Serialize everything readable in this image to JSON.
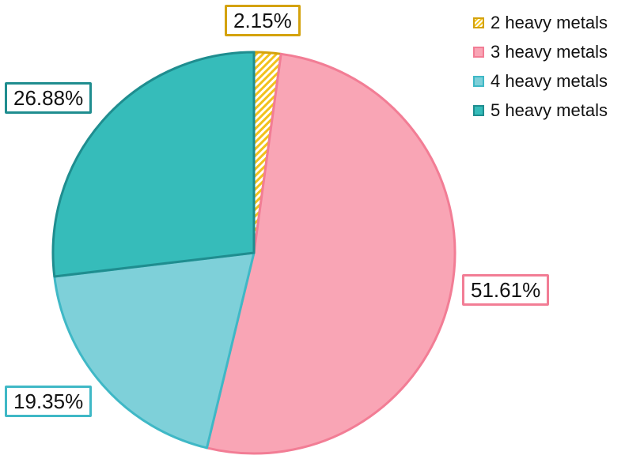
{
  "chart_data": {
    "type": "pie",
    "title": "",
    "series": [
      {
        "name": "2 heavy metals",
        "value": 2.15,
        "label": "2.15%",
        "color": "#f2c21c",
        "border": "#d4a20c",
        "pattern": "hatched"
      },
      {
        "name": "3 heavy metals",
        "value": 51.61,
        "label": "51.61%",
        "color": "#f9a5b5",
        "border": "#f27d95",
        "pattern": "solid"
      },
      {
        "name": "4 heavy metals",
        "value": 19.35,
        "label": "19.35%",
        "color": "#7ed0d9",
        "border": "#3fb8c6",
        "pattern": "solid"
      },
      {
        "name": "5 heavy metals",
        "value": 26.88,
        "label": "26.88%",
        "color": "#36bcba",
        "border": "#1f8d8f",
        "pattern": "solid"
      }
    ],
    "start_angle": "12 o'clock",
    "direction": "clockwise",
    "legend": "top-right"
  }
}
